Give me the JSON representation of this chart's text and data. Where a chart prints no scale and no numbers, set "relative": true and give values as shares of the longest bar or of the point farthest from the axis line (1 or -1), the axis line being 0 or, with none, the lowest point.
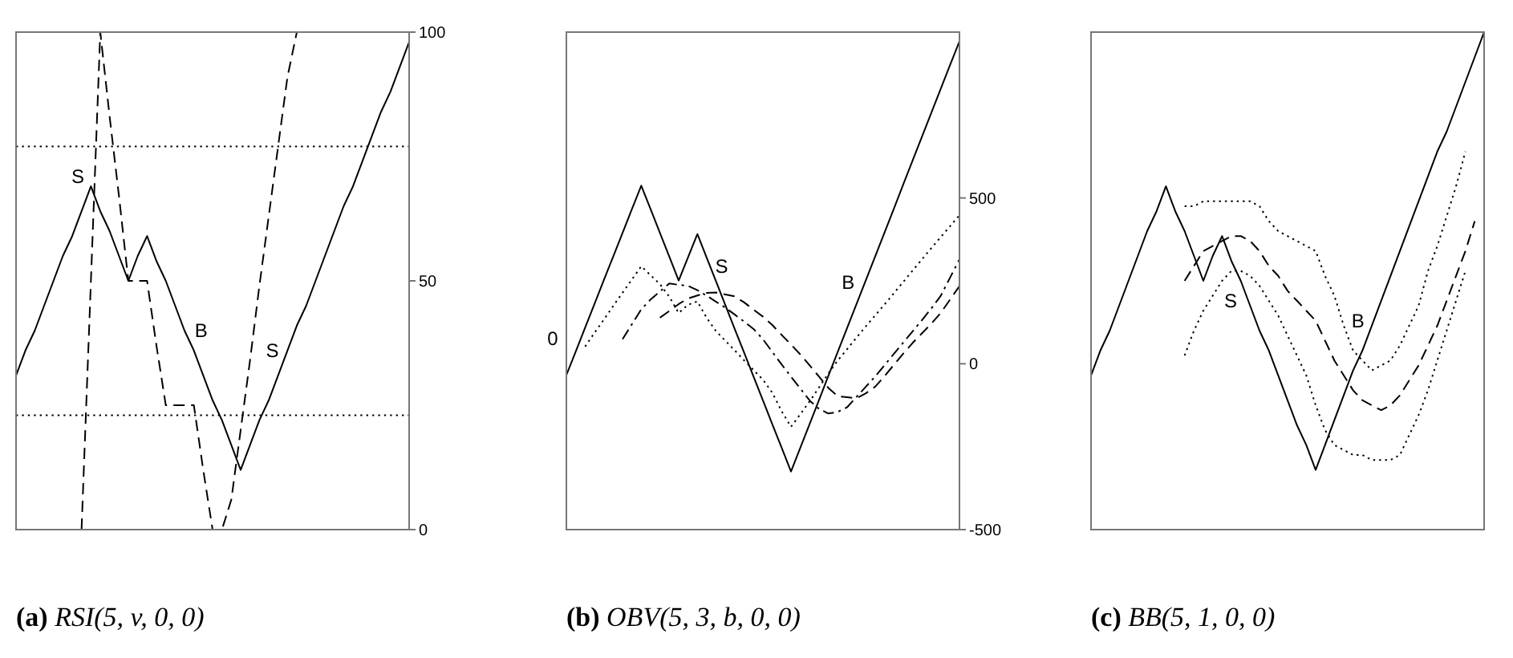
{
  "chart_data": [
    {
      "type": "line",
      "title": "(a) RSI(5, v, 0, 0)",
      "categories": [
        null,
        null,
        null,
        null,
        null,
        null,
        null,
        null,
        null,
        null,
        null,
        null,
        null,
        null,
        null,
        null,
        null,
        null,
        null,
        null,
        null,
        null,
        null,
        null,
        null,
        null,
        null,
        null,
        null,
        null,
        null,
        null,
        null,
        null,
        null,
        null,
        null,
        null,
        null,
        null,
        null,
        null,
        null
      ],
      "ylim": [
        0,
        100
      ],
      "yticks": [
        0,
        50,
        100
      ],
      "tick_labels": "y",
      "series": [
        {
          "color": "#000000",
          "line_style": "solid",
          "values": [
            31,
            36,
            40,
            45,
            50,
            55,
            59,
            64,
            69,
            64,
            60,
            55,
            50,
            55,
            59,
            54,
            50,
            45,
            40,
            36,
            31,
            26,
            22,
            17,
            12,
            17,
            22,
            26,
            31,
            36,
            41,
            45,
            50,
            55,
            60,
            65,
            69,
            74,
            79,
            84,
            88,
            93,
            98
          ]
        },
        {
          "color": "#000000",
          "line_style": "dashed",
          "values": [
            null,
            null,
            null,
            null,
            null,
            null,
            null,
            0,
            50,
            100,
            83,
            67,
            50,
            50,
            50,
            37,
            25,
            25,
            25,
            25,
            12,
            0,
            0,
            6,
            20,
            34,
            49,
            63,
            77,
            91,
            100,
            100,
            100,
            100,
            100,
            100,
            100,
            100,
            100,
            100,
            100,
            100,
            100
          ]
        }
      ],
      "ref_lines": [
        {
          "axis": "y",
          "value": 77,
          "line_style": "dotted",
          "color": "#000000"
        },
        {
          "axis": "y",
          "value": 23,
          "line_style": "dotted",
          "color": "#000000"
        }
      ],
      "annotations": [
        "S",
        "B",
        "S"
      ]
    },
    {
      "type": "line",
      "title": "(b) OBV(5, 3, b, 0, 0)",
      "categories": [
        null,
        null,
        null,
        null,
        null,
        null,
        null,
        null,
        null,
        null,
        null,
        null,
        null,
        null,
        null,
        null,
        null,
        null,
        null,
        null,
        null,
        null,
        null,
        null,
        null,
        null,
        null,
        null,
        null,
        null,
        null,
        null,
        null,
        null,
        null,
        null,
        null,
        null,
        null,
        null,
        null,
        null,
        null
      ],
      "ylim": [
        -500,
        1000
      ],
      "yticks": [
        -500,
        0,
        500
      ],
      "tick_labels": "y",
      "series": [
        {
          "color": "#000000",
          "line_style": "solid",
          "values": [
            -34,
            37,
            109,
            180,
            252,
            323,
            394,
            466,
            537,
            466,
            394,
            323,
            251,
            321,
            391,
            319,
            248,
            176,
            104,
            33,
            -39,
            -110,
            -182,
            -253,
            -325,
            -253,
            -181,
            -109,
            -36,
            36,
            108,
            180,
            252,
            324,
            396,
            468,
            541,
            613,
            685,
            757,
            829,
            901,
            972
          ]
        },
        {
          "color": "#000000",
          "line_style": "dotted",
          "values": [
            null,
            null,
            52,
            93,
            133,
            174,
            214,
            254,
            294,
            267,
            240,
            202,
            153,
            178,
            188,
            138,
            98,
            69,
            40,
            10,
            -19,
            -48,
            -87,
            -143,
            -190,
            -152,
            -113,
            -71,
            -29,
            10,
            44,
            79,
            113,
            146,
            179,
            213,
            247,
            281,
            315,
            349,
            382,
            415,
            448
          ]
        },
        {
          "color": "#000000",
          "line_style": "dashdot",
          "values": [
            null,
            null,
            null,
            null,
            null,
            null,
            74,
            119,
            164,
            194,
            218,
            242,
            238,
            235,
            222,
            205,
            187,
            169,
            148,
            127,
            105,
            74,
            36,
            -2,
            -39,
            -75,
            -111,
            -136,
            -150,
            -145,
            -131,
            -100,
            -69,
            -38,
            -4,
            30,
            64,
            98,
            132,
            167,
            205,
            260,
            315
          ]
        },
        {
          "color": "#000000",
          "line_style": "dashed",
          "values": [
            null,
            null,
            null,
            null,
            null,
            null,
            null,
            null,
            null,
            null,
            139,
            159,
            180,
            197,
            206,
            214,
            215,
            209,
            203,
            185,
            163,
            142,
            117,
            87,
            58,
            28,
            -5,
            -39,
            -73,
            -98,
            -101,
            -104,
            -89,
            -69,
            -37,
            -3,
            31,
            63,
            92,
            121,
            153,
            194,
            234
          ]
        }
      ],
      "annotations": [
        "0",
        "S",
        "B"
      ]
    },
    {
      "type": "line",
      "title": "(c) BB(5, 1, 0, 0)",
      "categories": [
        null,
        null,
        null,
        null,
        null,
        null,
        null,
        null,
        null,
        null,
        null,
        null,
        null,
        null,
        null,
        null,
        null,
        null,
        null,
        null,
        null,
        null,
        null,
        null,
        null,
        null,
        null,
        null,
        null,
        null,
        null,
        null,
        null,
        null,
        null,
        null,
        null,
        null,
        null,
        null,
        null,
        null,
        null
      ],
      "relative": true,
      "tick_labels": false,
      "series": [
        {
          "color": "#000000",
          "line_style": "solid",
          "values": [
            0.31,
            0.36,
            0.4,
            0.45,
            0.5,
            0.55,
            0.6,
            0.64,
            0.69,
            0.64,
            0.6,
            0.55,
            0.5,
            0.55,
            0.59,
            0.54,
            0.5,
            0.45,
            0.4,
            0.36,
            0.31,
            0.26,
            0.21,
            0.17,
            0.12,
            0.17,
            0.22,
            0.27,
            0.32,
            0.36,
            0.41,
            0.46,
            0.51,
            0.56,
            0.61,
            0.66,
            0.71,
            0.76,
            0.8,
            0.85,
            0.9,
            0.95,
            1
          ]
        },
        {
          "color": "#000000",
          "line_style": "dashed",
          "values": [
            null,
            null,
            null,
            null,
            null,
            null,
            null,
            null,
            null,
            null,
            0.5,
            0.53,
            0.56,
            0.57,
            0.58,
            0.59,
            0.59,
            0.58,
            0.56,
            0.53,
            0.51,
            0.48,
            0.46,
            0.44,
            0.42,
            0.38,
            0.34,
            0.31,
            0.28,
            0.26,
            0.25,
            0.24,
            0.25,
            0.27,
            0.3,
            0.33,
            0.37,
            0.41,
            0.46,
            0.51,
            0.56,
            0.62,
            null
          ]
        },
        {
          "color": "#000000",
          "line_style": "dotted",
          "values": [
            null,
            null,
            null,
            null,
            null,
            null,
            null,
            null,
            null,
            null,
            0.65,
            0.65,
            0.66,
            0.66,
            0.66,
            0.66,
            0.66,
            0.66,
            0.65,
            0.62,
            0.6,
            0.59,
            0.58,
            0.57,
            0.56,
            0.51,
            0.47,
            0.41,
            0.36,
            0.34,
            0.32,
            0.33,
            0.34,
            0.37,
            0.41,
            0.45,
            0.52,
            0.57,
            0.63,
            0.69,
            0.76,
            null,
            null
          ]
        },
        {
          "color": "#000000",
          "line_style": "dotted",
          "values": [
            null,
            null,
            null,
            null,
            null,
            null,
            null,
            null,
            null,
            null,
            0.35,
            0.4,
            0.44,
            0.47,
            0.5,
            0.52,
            0.52,
            0.51,
            0.49,
            0.46,
            0.43,
            0.39,
            0.35,
            0.31,
            0.25,
            0.2,
            0.17,
            0.16,
            0.15,
            0.15,
            0.14,
            0.14,
            0.14,
            0.15,
            0.19,
            0.23,
            0.28,
            0.34,
            0.4,
            0.46,
            0.52,
            null,
            null
          ]
        }
      ],
      "annotations": [
        "S",
        "B"
      ]
    }
  ]
}
